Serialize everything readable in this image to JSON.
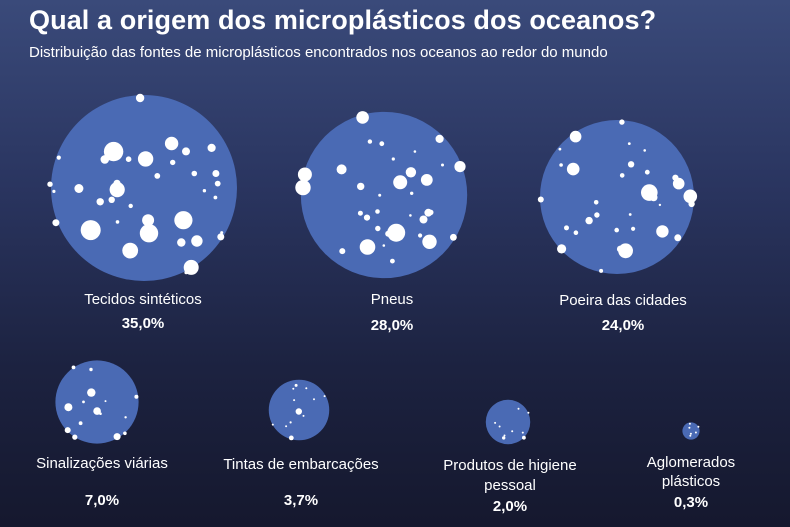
{
  "title": "Qual a origem dos microplásticos dos oceanos?",
  "subtitle": "Distribuição das fontes de microplásticos encontrados nos oceanos ao redor do mundo",
  "colors": {
    "circle": "#4a6ab4",
    "particle": "#ffffff",
    "text": "#ffffff"
  },
  "chart_data": {
    "type": "bubble",
    "title": "Qual a origem dos microplásticos dos oceanos?",
    "subtitle": "Distribuição das fontes de microplásticos encontrados nos oceanos ao redor do mundo",
    "unit": "%",
    "items": [
      {
        "label": [
          "Tecidos sintéticos"
        ],
        "value": 35.0,
        "display": "35,0%"
      },
      {
        "label": [
          "Pneus"
        ],
        "value": 28.0,
        "display": "28,0%"
      },
      {
        "label": [
          "Poeira das cidades"
        ],
        "value": 24.0,
        "display": "24,0%"
      },
      {
        "label": [
          "Sinalizações viárias"
        ],
        "value": 7.0,
        "display": "7,0%"
      },
      {
        "label": [
          "Tintas de embarcações"
        ],
        "value": 3.7,
        "display": "3,7%"
      },
      {
        "label": [
          "Produtos de higiene",
          "pessoal"
        ],
        "value": 2.0,
        "display": "2,0%"
      },
      {
        "label": [
          "Aglomerados",
          "plásticos"
        ],
        "value": 0.3,
        "display": "0,3%"
      }
    ]
  }
}
